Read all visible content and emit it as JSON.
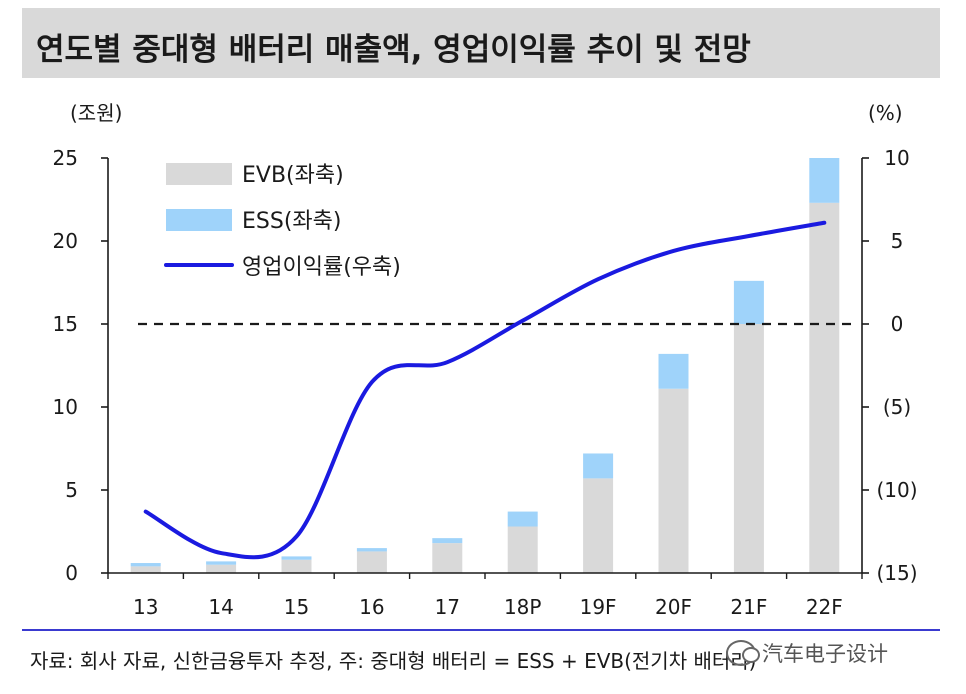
{
  "title": "연도별 중대형 배터리 매출액, 영업이익률 추이 및 전망",
  "left_unit": "(조원)",
  "right_unit": "(%)",
  "source": "자료: 회사 자료, 신한금융투자 추정, 주: 중대형 배터리 = ESS + EVB(전기차 배터리)",
  "watermark": "汽车电子设计",
  "colors": {
    "evb": "#d9d9d9",
    "ess": "#9fd3fa",
    "margin_line": "#1a1ae0",
    "axis": "#1a1a1a"
  },
  "chart_data": {
    "type": "bar",
    "stacked": true,
    "categories": [
      "13",
      "14",
      "15",
      "16",
      "17",
      "18P",
      "19F",
      "20F",
      "21F",
      "22F"
    ],
    "series": [
      {
        "name": "EVB(좌축)",
        "axis": "left",
        "type": "bar",
        "values": [
          0.4,
          0.5,
          0.8,
          1.3,
          1.8,
          2.8,
          5.7,
          11.1,
          15.0,
          22.3
        ]
      },
      {
        "name": "ESS(좌축)",
        "axis": "left",
        "type": "bar",
        "values": [
          0.2,
          0.2,
          0.2,
          0.2,
          0.3,
          0.9,
          1.5,
          2.1,
          2.6,
          2.7
        ]
      },
      {
        "name": "영업이익률(우축)",
        "axis": "right",
        "type": "line",
        "values": [
          -11.3,
          -13.8,
          -12.8,
          -3.5,
          -2.3,
          0.2,
          2.7,
          4.4,
          5.3,
          6.1
        ]
      }
    ],
    "left_axis": {
      "ylim": [
        0,
        25
      ],
      "ticks": [
        "0",
        "5",
        "10",
        "15",
        "20",
        "25"
      ]
    },
    "right_axis": {
      "ylim": [
        -15,
        10
      ],
      "ticks": [
        "(15)",
        "(10)",
        "(5)",
        "0",
        "5",
        "10"
      ]
    },
    "reference_line": {
      "axis": "right",
      "value": 0,
      "style": "dashed"
    },
    "legend_position": "top-left",
    "grid": false
  }
}
